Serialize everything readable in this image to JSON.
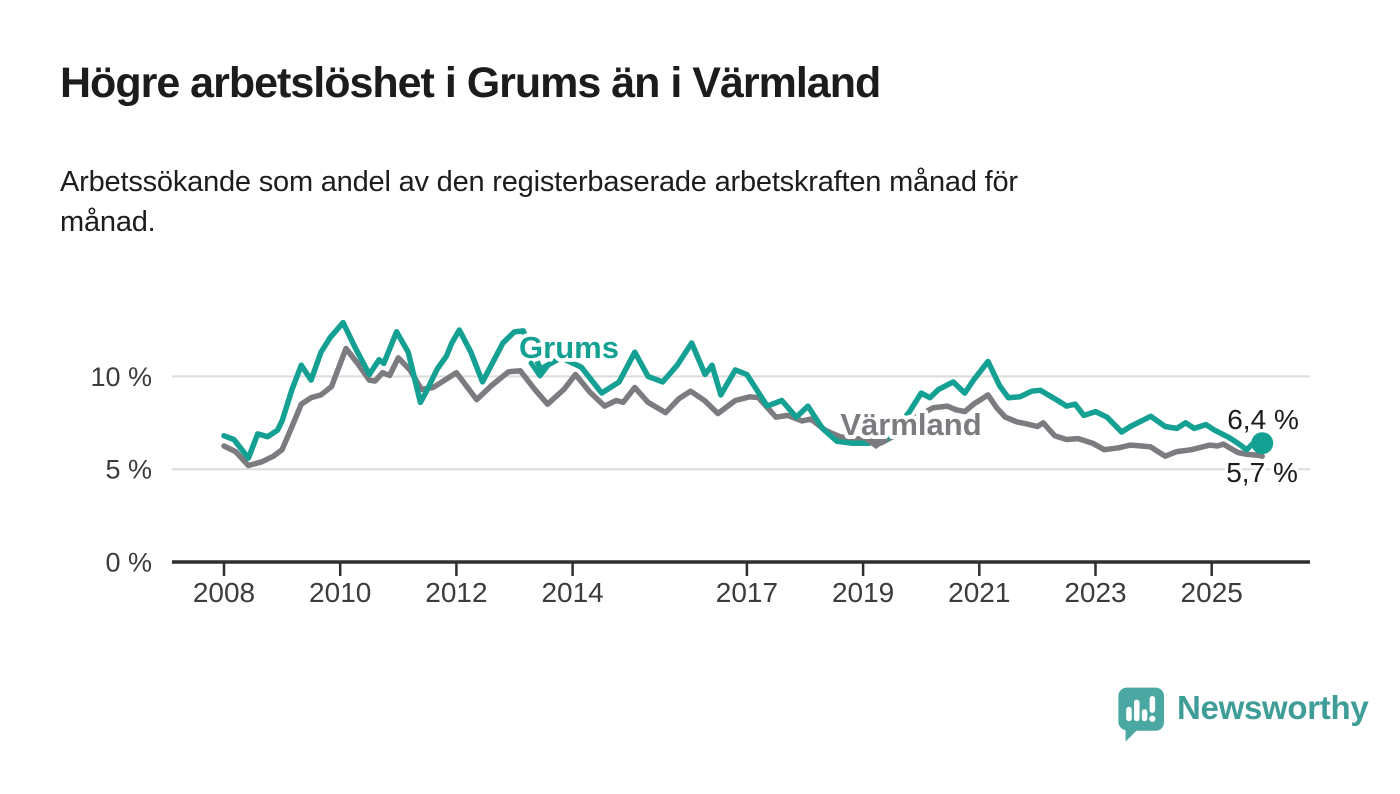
{
  "header": {
    "title": "Högre arbetslöshet i Grums än i Värmland",
    "subtitle": "Arbetssökande som andel av den registerbaserade arbetskraften månad för månad.",
    "subtitle_lines": [
      "Arbetssökande som andel av den registerbaserade arbetskraften månad för",
      "månad."
    ]
  },
  "footer": {
    "brand": "Newsworthy",
    "logo_icon": "speech-bubble-bar-chart-icon",
    "brand_color": "#3f9d98",
    "icon_color": "#4aa7a1"
  },
  "chart_data": {
    "type": "line",
    "title": "Högre arbetslöshet i Grums än i Värmland",
    "subtitle": "Arbetssökande som andel av den registerbaserade arbetskraften månad för månad.",
    "unit": "%",
    "grid": "horizontal",
    "legend_position": "inline-labels",
    "x_axis": {
      "ticks": [
        2008,
        2010,
        2012,
        2014,
        2017,
        2019,
        2021,
        2023,
        2025
      ],
      "range_years": [
        2007.1,
        2026.7
      ]
    },
    "y_axis": {
      "tick_labels": [
        "0 %",
        "5 %",
        "10 %"
      ],
      "tick_values": [
        0,
        5,
        10
      ],
      "range": [
        0,
        13.5
      ]
    },
    "colors": {
      "grid": "#dcdcdc",
      "axis": "#2f2f2f",
      "tick_text": "#3c3c3c",
      "end_label_text": "#1c1c1c"
    },
    "series": [
      {
        "name": "Grums",
        "color": "#14a092",
        "end_label": "6,4 %",
        "end_value": 6.4,
        "end_dot": true,
        "points": [
          [
            2008.0,
            6.8
          ],
          [
            2008.17,
            6.6
          ],
          [
            2008.42,
            5.6
          ],
          [
            2008.58,
            6.9
          ],
          [
            2008.75,
            6.75
          ],
          [
            2008.92,
            7.1
          ],
          [
            2009.0,
            7.6
          ],
          [
            2009.17,
            9.3
          ],
          [
            2009.33,
            10.6
          ],
          [
            2009.5,
            9.8
          ],
          [
            2009.67,
            11.3
          ],
          [
            2009.83,
            12.1
          ],
          [
            2010.05,
            12.9
          ],
          [
            2010.25,
            11.6
          ],
          [
            2010.5,
            10.1
          ],
          [
            2010.67,
            10.9
          ],
          [
            2010.75,
            10.7
          ],
          [
            2010.97,
            12.4
          ],
          [
            2011.17,
            11.3
          ],
          [
            2011.38,
            8.6
          ],
          [
            2011.5,
            9.3
          ],
          [
            2011.67,
            10.4
          ],
          [
            2011.83,
            11.1
          ],
          [
            2011.92,
            11.8
          ],
          [
            2012.05,
            12.5
          ],
          [
            2012.25,
            11.3
          ],
          [
            2012.45,
            9.7
          ],
          [
            2012.6,
            10.6
          ],
          [
            2012.8,
            11.8
          ],
          [
            2013.0,
            12.4
          ],
          [
            2013.15,
            12.45
          ],
          [
            2013.45,
            10.4
          ],
          [
            2013.8,
            11.0
          ],
          [
            2014.15,
            10.5
          ],
          [
            2014.5,
            9.1
          ],
          [
            2014.8,
            9.7
          ],
          [
            2015.07,
            11.3
          ],
          [
            2015.3,
            10.0
          ],
          [
            2015.55,
            9.7
          ],
          [
            2015.8,
            10.6
          ],
          [
            2016.05,
            11.8
          ],
          [
            2016.28,
            10.1
          ],
          [
            2016.4,
            10.6
          ],
          [
            2016.55,
            9.0
          ],
          [
            2016.8,
            10.35
          ],
          [
            2017.0,
            10.1
          ],
          [
            2017.35,
            8.4
          ],
          [
            2017.6,
            8.7
          ],
          [
            2017.85,
            7.8
          ],
          [
            2018.05,
            8.4
          ],
          [
            2018.3,
            7.2
          ],
          [
            2018.55,
            6.5
          ],
          [
            2018.8,
            6.4
          ],
          [
            2019.1,
            6.4
          ],
          [
            2019.4,
            6.6
          ],
          [
            2019.65,
            7.5
          ],
          [
            2019.8,
            8.1
          ],
          [
            2020.0,
            9.1
          ],
          [
            2020.15,
            8.85
          ],
          [
            2020.3,
            9.3
          ],
          [
            2020.55,
            9.7
          ],
          [
            2020.75,
            9.1
          ],
          [
            2020.9,
            9.8
          ],
          [
            2021.15,
            10.8
          ],
          [
            2021.35,
            9.5
          ],
          [
            2021.5,
            8.85
          ],
          [
            2021.7,
            8.9
          ],
          [
            2021.9,
            9.2
          ],
          [
            2022.05,
            9.25
          ],
          [
            2022.35,
            8.7
          ],
          [
            2022.5,
            8.4
          ],
          [
            2022.65,
            8.5
          ],
          [
            2022.8,
            7.9
          ],
          [
            2023.0,
            8.1
          ],
          [
            2023.2,
            7.8
          ],
          [
            2023.45,
            7.0
          ],
          [
            2023.6,
            7.3
          ],
          [
            2023.95,
            7.85
          ],
          [
            2024.2,
            7.3
          ],
          [
            2024.4,
            7.2
          ],
          [
            2024.55,
            7.5
          ],
          [
            2024.7,
            7.2
          ],
          [
            2024.9,
            7.4
          ],
          [
            2025.05,
            7.1
          ],
          [
            2025.3,
            6.7
          ],
          [
            2025.45,
            6.4
          ],
          [
            2025.6,
            6.05
          ],
          [
            2025.75,
            6.5
          ],
          [
            2025.87,
            6.4
          ]
        ]
      },
      {
        "name": "Värmland",
        "color": "#7b7b80",
        "end_label": "5,7 %",
        "end_value": 5.7,
        "end_dot": false,
        "points": [
          [
            2008.0,
            6.25
          ],
          [
            2008.2,
            5.95
          ],
          [
            2008.42,
            5.2
          ],
          [
            2008.65,
            5.4
          ],
          [
            2008.85,
            5.7
          ],
          [
            2009.0,
            6.05
          ],
          [
            2009.17,
            7.3
          ],
          [
            2009.33,
            8.5
          ],
          [
            2009.5,
            8.85
          ],
          [
            2009.67,
            9.0
          ],
          [
            2009.85,
            9.45
          ],
          [
            2010.1,
            11.5
          ],
          [
            2010.3,
            10.7
          ],
          [
            2010.5,
            9.8
          ],
          [
            2010.6,
            9.75
          ],
          [
            2010.73,
            10.2
          ],
          [
            2010.85,
            10.05
          ],
          [
            2011.0,
            11.0
          ],
          [
            2011.2,
            10.35
          ],
          [
            2011.4,
            9.3
          ],
          [
            2011.6,
            9.4
          ],
          [
            2011.75,
            9.7
          ],
          [
            2012.0,
            10.2
          ],
          [
            2012.35,
            8.75
          ],
          [
            2012.6,
            9.5
          ],
          [
            2012.9,
            10.25
          ],
          [
            2013.1,
            10.3
          ],
          [
            2013.35,
            9.3
          ],
          [
            2013.57,
            8.5
          ],
          [
            2013.85,
            9.3
          ],
          [
            2014.05,
            10.1
          ],
          [
            2014.3,
            9.15
          ],
          [
            2014.55,
            8.4
          ],
          [
            2014.75,
            8.7
          ],
          [
            2014.87,
            8.6
          ],
          [
            2015.07,
            9.4
          ],
          [
            2015.3,
            8.6
          ],
          [
            2015.6,
            8.05
          ],
          [
            2015.83,
            8.8
          ],
          [
            2016.03,
            9.2
          ],
          [
            2016.27,
            8.7
          ],
          [
            2016.5,
            8.0
          ],
          [
            2016.8,
            8.7
          ],
          [
            2017.05,
            8.9
          ],
          [
            2017.2,
            8.85
          ],
          [
            2017.5,
            7.8
          ],
          [
            2017.7,
            7.9
          ],
          [
            2017.95,
            7.6
          ],
          [
            2018.1,
            7.7
          ],
          [
            2018.35,
            7.1
          ],
          [
            2018.6,
            6.75
          ],
          [
            2019.0,
            6.6
          ],
          [
            2019.3,
            6.4
          ],
          [
            2019.6,
            6.9
          ],
          [
            2019.8,
            7.6
          ],
          [
            2020.2,
            8.3
          ],
          [
            2020.45,
            8.4
          ],
          [
            2020.6,
            8.2
          ],
          [
            2020.75,
            8.1
          ],
          [
            2020.9,
            8.5
          ],
          [
            2021.15,
            9.0
          ],
          [
            2021.3,
            8.3
          ],
          [
            2021.45,
            7.8
          ],
          [
            2021.65,
            7.55
          ],
          [
            2021.8,
            7.45
          ],
          [
            2022.0,
            7.3
          ],
          [
            2022.1,
            7.5
          ],
          [
            2022.3,
            6.8
          ],
          [
            2022.5,
            6.6
          ],
          [
            2022.7,
            6.65
          ],
          [
            2022.95,
            6.4
          ],
          [
            2023.15,
            6.05
          ],
          [
            2023.4,
            6.15
          ],
          [
            2023.6,
            6.3
          ],
          [
            2023.8,
            6.25
          ],
          [
            2023.95,
            6.2
          ],
          [
            2024.2,
            5.7
          ],
          [
            2024.4,
            5.95
          ],
          [
            2024.65,
            6.05
          ],
          [
            2024.97,
            6.3
          ],
          [
            2025.1,
            6.25
          ],
          [
            2025.2,
            6.35
          ],
          [
            2025.45,
            5.9
          ],
          [
            2025.6,
            5.8
          ],
          [
            2025.8,
            5.75
          ],
          [
            2025.87,
            5.7
          ]
        ]
      }
    ]
  }
}
